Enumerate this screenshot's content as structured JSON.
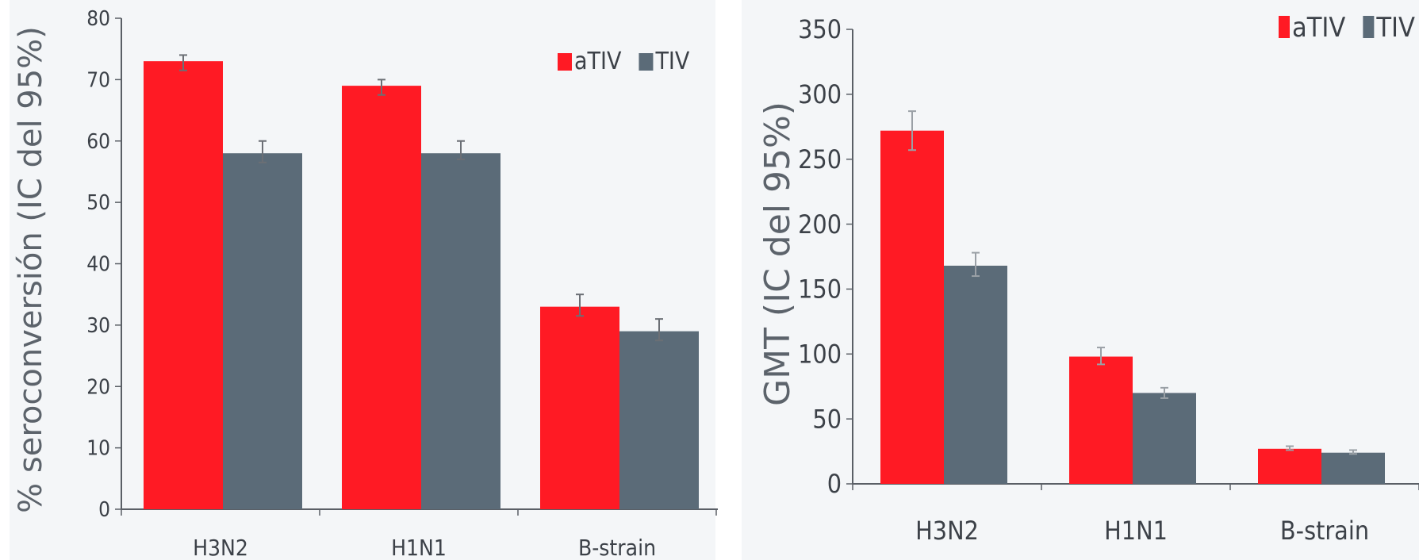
{
  "colors": {
    "aTIV": "#ff1a24",
    "TIV": "#5b6b78",
    "axis": "#5a5f66",
    "text": "#3c4148",
    "panel_bg": "#f4f6f8"
  },
  "chart_data": [
    {
      "type": "bar",
      "title": "",
      "xlabel": "",
      "ylabel": "% seroconversión (IC del 95%)",
      "ylim": [
        0,
        80
      ],
      "yticks": [
        0,
        10,
        20,
        30,
        40,
        50,
        60,
        70,
        80
      ],
      "categories": [
        "H3N2",
        "H1N1",
        "B-strain"
      ],
      "legend_position": "top-right",
      "grid": false,
      "series": [
        {
          "name": "aTIV",
          "values": [
            73,
            69,
            33
          ],
          "error_low": [
            71.5,
            67.5,
            31.5
          ],
          "error_high": [
            74,
            70,
            35
          ]
        },
        {
          "name": "TIV",
          "values": [
            58,
            58,
            29
          ],
          "error_low": [
            56.5,
            57,
            27.5
          ],
          "error_high": [
            60,
            60,
            31
          ]
        }
      ]
    },
    {
      "type": "bar",
      "title": "",
      "xlabel": "",
      "ylabel": "GMT (IC del 95%)",
      "ylim": [
        0,
        350
      ],
      "yticks": [
        0,
        50,
        100,
        150,
        200,
        250,
        300,
        350
      ],
      "categories": [
        "H3N2",
        "H1N1",
        "B-strain"
      ],
      "legend_position": "top-right",
      "grid": false,
      "series": [
        {
          "name": "aTIV",
          "values": [
            272,
            98,
            27
          ],
          "error_low": [
            257,
            92,
            26
          ],
          "error_high": [
            287,
            105,
            29
          ]
        },
        {
          "name": "TIV",
          "values": [
            168,
            70,
            24
          ],
          "error_low": [
            160,
            66,
            23
          ],
          "error_high": [
            178,
            74,
            26
          ]
        }
      ]
    }
  ]
}
